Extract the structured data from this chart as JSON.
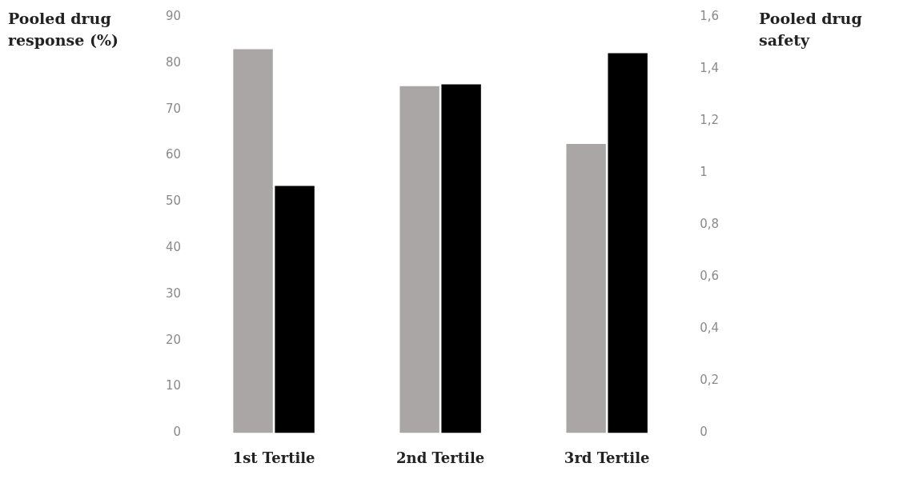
{
  "chart_data": {
    "type": "bar",
    "ylabel": "Pooled drug response (%)",
    "y2label": "Pooled drug safety",
    "categories": [
      "1st Tertile",
      "2nd Tertile",
      "3rd Tertile"
    ],
    "series": [
      {
        "color": "#aaa6a5",
        "values": [
          83,
          75,
          62.5
        ]
      },
      {
        "color": "#000000",
        "values": [
          0.95,
          1.34,
          1.46
        ],
        "axis": "y2"
      }
    ],
    "ylim": [
      0,
      90
    ],
    "yticks": [
      0,
      10,
      20,
      30,
      40,
      50,
      60,
      70,
      80,
      90
    ],
    "y2lim": [
      0,
      1.6
    ],
    "y2ticks": [
      0,
      {
        "value": 0.2,
        "label": "0,2"
      },
      {
        "value": 0.4,
        "label": "0,4"
      },
      {
        "value": 0.6,
        "label": "0,6"
      },
      {
        "value": 0.8,
        "label": "0,8"
      },
      1,
      {
        "value": 1.2,
        "label": "1,2"
      },
      {
        "value": 1.4,
        "label": "1,4"
      },
      {
        "value": 1.6,
        "label": "1,6"
      }
    ],
    "grid": false,
    "legend": false
  }
}
